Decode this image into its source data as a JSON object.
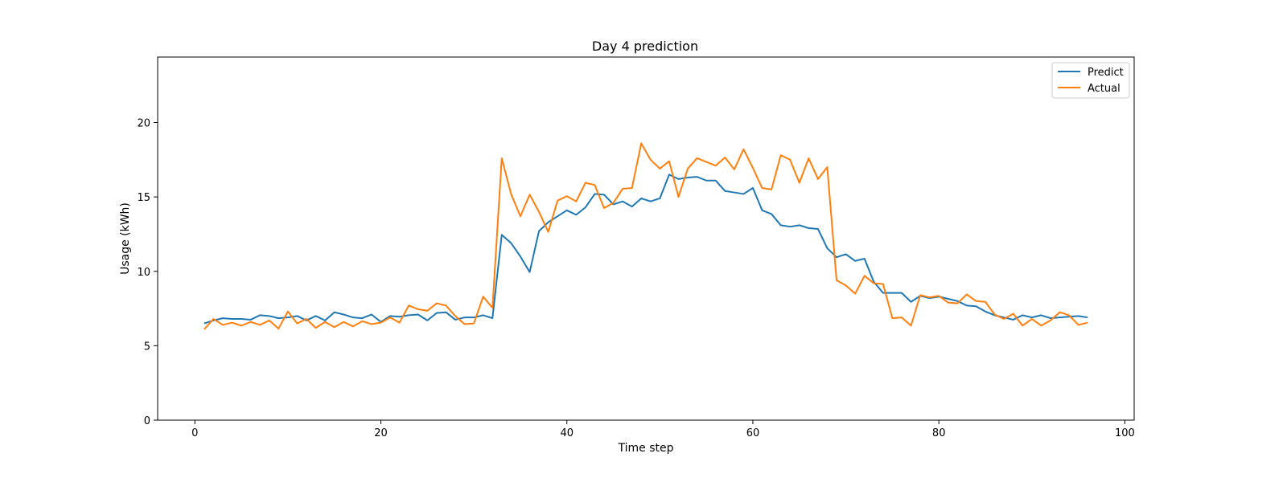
{
  "chart_data": {
    "type": "line",
    "title": "Day 4 prediction",
    "xlabel": "Time step",
    "ylabel": "Usage (kWh)",
    "xlim": [
      -4,
      101
    ],
    "ylim": [
      0,
      24.4
    ],
    "xticks": [
      0,
      20,
      40,
      60,
      80,
      100
    ],
    "yticks": [
      0,
      5,
      10,
      15,
      20
    ],
    "legend_position": "top-right",
    "grid": false,
    "x": [
      1,
      2,
      3,
      4,
      5,
      6,
      7,
      8,
      9,
      10,
      11,
      12,
      13,
      14,
      15,
      16,
      17,
      18,
      19,
      20,
      21,
      22,
      23,
      24,
      25,
      26,
      27,
      28,
      29,
      30,
      31,
      32,
      33,
      34,
      35,
      36,
      37,
      38,
      39,
      40,
      41,
      42,
      43,
      44,
      45,
      46,
      47,
      48,
      49,
      50,
      51,
      52,
      53,
      54,
      55,
      56,
      57,
      58,
      59,
      60,
      61,
      62,
      63,
      64,
      65,
      66,
      67,
      68,
      69,
      70,
      71,
      72,
      73,
      74,
      75,
      76,
      77,
      78,
      79,
      80,
      81,
      82,
      83,
      84,
      85,
      86,
      87,
      88,
      89,
      90,
      91,
      92,
      93,
      94,
      95,
      96
    ],
    "series": [
      {
        "name": "Predict",
        "color": "#1f77b4",
        "values": [
          6.5,
          6.7,
          6.85,
          6.8,
          6.8,
          6.75,
          7.05,
          7.0,
          6.85,
          6.9,
          7.0,
          6.7,
          7.0,
          6.7,
          7.25,
          7.1,
          6.9,
          6.85,
          7.1,
          6.6,
          7.0,
          6.95,
          7.05,
          7.1,
          6.7,
          7.2,
          7.25,
          6.75,
          6.9,
          6.9,
          7.05,
          6.85,
          12.45,
          11.9,
          11.0,
          9.95,
          12.7,
          13.3,
          13.7,
          14.1,
          13.8,
          14.3,
          15.2,
          15.15,
          14.5,
          14.7,
          14.35,
          14.9,
          14.7,
          14.9,
          16.5,
          16.2,
          16.3,
          16.35,
          16.1,
          16.1,
          15.4,
          15.3,
          15.2,
          15.6,
          14.1,
          13.85,
          13.1,
          13.0,
          13.1,
          12.9,
          12.85,
          11.55,
          10.95,
          11.15,
          10.7,
          10.85,
          9.3,
          8.55,
          8.55,
          8.55,
          7.95,
          8.35,
          8.2,
          8.3,
          8.15,
          8.0,
          7.7,
          7.65,
          7.3,
          7.05,
          6.9,
          6.75,
          7.05,
          6.9,
          7.05,
          6.85,
          6.9,
          6.95,
          7.0,
          6.9
        ]
      },
      {
        "name": "Actual",
        "color": "#ff7f0e",
        "values": [
          6.1,
          6.8,
          6.4,
          6.55,
          6.35,
          6.6,
          6.4,
          6.7,
          6.15,
          7.3,
          6.5,
          6.8,
          6.2,
          6.6,
          6.25,
          6.6,
          6.3,
          6.65,
          6.45,
          6.55,
          6.9,
          6.55,
          7.7,
          7.45,
          7.35,
          7.85,
          7.7,
          7.0,
          6.45,
          6.5,
          8.3,
          7.55,
          17.6,
          15.2,
          13.7,
          15.15,
          14.0,
          12.65,
          14.75,
          15.05,
          14.7,
          15.95,
          15.8,
          14.25,
          14.6,
          15.55,
          15.6,
          18.6,
          17.5,
          16.9,
          17.4,
          15.0,
          16.9,
          17.6,
          17.35,
          17.1,
          17.65,
          16.85,
          18.2,
          16.95,
          15.6,
          15.5,
          17.8,
          17.5,
          15.95,
          17.6,
          16.2,
          17.0,
          9.4,
          9.05,
          8.5,
          9.7,
          9.2,
          9.15,
          6.85,
          6.9,
          6.35,
          8.4,
          8.25,
          8.35,
          7.9,
          7.85,
          8.45,
          8.0,
          7.95,
          7.1,
          6.8,
          7.15,
          6.35,
          6.8,
          6.35,
          6.7,
          7.25,
          7.05,
          6.4,
          6.55
        ]
      }
    ]
  }
}
